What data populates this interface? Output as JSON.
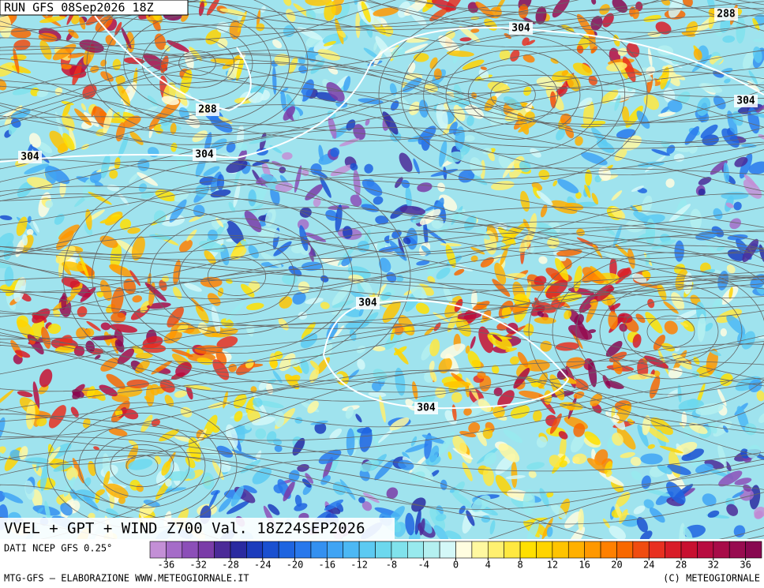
{
  "header": {
    "run": "RUN GFS 08Sep2026 18Z"
  },
  "map": {
    "product": "VVEL + GPT + WIND Z700 Val. 18Z24SEP2026",
    "contour_labels": [
      "288",
      "304",
      "304",
      "288",
      "304",
      "304",
      "304",
      "304"
    ]
  },
  "colorbar": {
    "source": "DATI NCEP GFS 0.25°",
    "bounds": [
      -38,
      38
    ],
    "ticks": [
      -36,
      -32,
      -28,
      -24,
      -20,
      -16,
      -12,
      -8,
      -4,
      0,
      4,
      8,
      12,
      16,
      20,
      24,
      28,
      32,
      36
    ],
    "colors": [
      "#c38fd6",
      "#a56cc8",
      "#8c4fb8",
      "#7a3ca8",
      "#4b2a98",
      "#2a2aa0",
      "#1c3cbc",
      "#1a50d0",
      "#1e64e0",
      "#2878ec",
      "#3490f0",
      "#40a4f4",
      "#4cb8f4",
      "#5ccaf2",
      "#6cd8ee",
      "#80e2ec",
      "#98eaee",
      "#b4f0f0",
      "#d4f8f8",
      "#fffde0",
      "#fff8a0",
      "#fff070",
      "#ffe840",
      "#ffe000",
      "#ffd400",
      "#ffc400",
      "#ffb000",
      "#ff9800",
      "#ff8000",
      "#f86800",
      "#f04c10",
      "#e83020",
      "#d81c28",
      "#c81030",
      "#b80c40",
      "#a80c48",
      "#980c50",
      "#880850"
    ]
  },
  "footer": {
    "left": "MTG-GFS — ELABORAZIONE WWW.METEOGIORNALE.IT",
    "right": "(C) METEOGIORNALE"
  }
}
